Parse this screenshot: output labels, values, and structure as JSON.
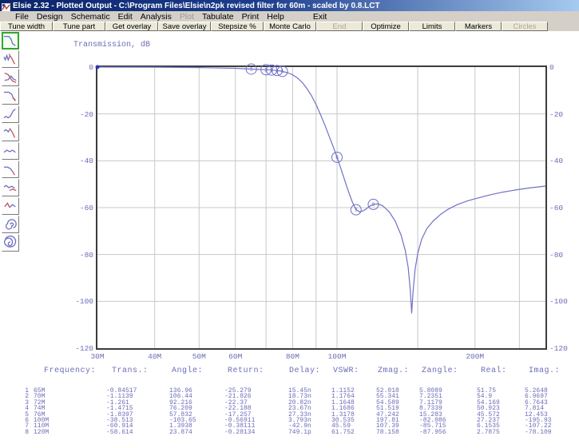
{
  "window": {
    "title": "Elsie 2.32 - Plotted Output - C:\\Program Files\\Elsie\\n2pk revised filter for 60m - scaled by 0.8.LCT"
  },
  "menu": {
    "items": [
      {
        "label": "File",
        "enabled": true
      },
      {
        "label": "Design",
        "enabled": true
      },
      {
        "label": "Schematic",
        "enabled": true
      },
      {
        "label": "Edit",
        "enabled": true
      },
      {
        "label": "Analysis",
        "enabled": true
      },
      {
        "label": "Plot",
        "enabled": false
      },
      {
        "label": "Tabulate",
        "enabled": true
      },
      {
        "label": "Print",
        "enabled": true
      },
      {
        "label": "Help",
        "enabled": true
      },
      {
        "label": "Exit",
        "enabled": true
      }
    ]
  },
  "toolbar": {
    "buttons": [
      {
        "label": "Tune width",
        "enabled": true
      },
      {
        "label": "Tune part",
        "enabled": true
      },
      {
        "label": "Get overlay",
        "enabled": true
      },
      {
        "label": "Save overlay",
        "enabled": true
      },
      {
        "label": "Stepsize %",
        "enabled": true
      },
      {
        "label": "Monte Carlo",
        "enabled": true
      },
      {
        "label": "End",
        "enabled": false
      },
      {
        "label": "Optimize",
        "enabled": true
      },
      {
        "label": "Limits",
        "enabled": true
      },
      {
        "label": "Markers",
        "enabled": true
      },
      {
        "label": "Circles",
        "enabled": false
      }
    ]
  },
  "side_toolbar": {
    "selected_index": 0,
    "buttons": [
      {
        "icon": "transmission-plot-icon"
      },
      {
        "icon": "transmission-phase-icon"
      },
      {
        "icon": "return-loss-icon"
      },
      {
        "icon": "reflection-plot-icon"
      },
      {
        "icon": "group-delay-icon"
      },
      {
        "icon": "reflection-phase-icon"
      },
      {
        "icon": "vswr-plot-icon"
      },
      {
        "icon": "impedance-magnitude-icon"
      },
      {
        "icon": "impedance-angle-icon"
      },
      {
        "icon": "real-imag-icon"
      },
      {
        "icon": "smith-chart-icon"
      },
      {
        "icon": "polar-chart-icon"
      }
    ]
  },
  "chart_data": {
    "type": "line",
    "title": "Transmission, dB",
    "x_axis": {
      "scale": "log",
      "min_mhz": 30,
      "max_mhz": 285,
      "tick_labels": [
        {
          "label": "30M",
          "mhz": 30
        },
        {
          "label": "40M",
          "mhz": 40
        },
        {
          "label": "50M",
          "mhz": 50
        },
        {
          "label": "60M",
          "mhz": 60
        },
        {
          "label": "80M",
          "mhz": 80
        },
        {
          "label": "100M",
          "mhz": 100
        },
        {
          "label": "200M",
          "mhz": 200
        }
      ],
      "gridlines_mhz": [
        40,
        50,
        60,
        70,
        80,
        90,
        100,
        150,
        200,
        250
      ]
    },
    "y_axis": {
      "min": -120,
      "max": 0,
      "tick_labels": [
        "0",
        "-20",
        "-40",
        "-60",
        "-80",
        "-100",
        "-120"
      ],
      "tick_values": [
        0,
        -20,
        -40,
        -60,
        -80,
        -100,
        -120
      ],
      "labels_both_sides": true
    },
    "series": [
      {
        "name": "Transmission, dB",
        "points_mhz_db": [
          [
            30,
            0
          ],
          [
            40,
            -0.05
          ],
          [
            50,
            -0.2
          ],
          [
            60,
            -0.5
          ],
          [
            65,
            -0.85
          ],
          [
            70,
            -1.11
          ],
          [
            72,
            -1.26
          ],
          [
            74,
            -1.47
          ],
          [
            76,
            -1.84
          ],
          [
            78,
            -2.4
          ],
          [
            80,
            -3.3
          ],
          [
            82,
            -4.7
          ],
          [
            84,
            -6.6
          ],
          [
            86,
            -9.2
          ],
          [
            88,
            -12.3
          ],
          [
            90,
            -16
          ],
          [
            92,
            -20.2
          ],
          [
            94,
            -24.6
          ],
          [
            96,
            -29.2
          ],
          [
            98,
            -33.8
          ],
          [
            100,
            -38.5
          ],
          [
            102,
            -43.5
          ],
          [
            104,
            -48.5
          ],
          [
            106,
            -53.3
          ],
          [
            108,
            -57.6
          ],
          [
            110,
            -60.9
          ],
          [
            112,
            -61.8
          ],
          [
            114,
            -61.4
          ],
          [
            116,
            -60.4
          ],
          [
            118,
            -59.3
          ],
          [
            120,
            -58.6
          ],
          [
            123,
            -58.4
          ],
          [
            126,
            -59.3
          ],
          [
            130,
            -61.8
          ],
          [
            134,
            -65.8
          ],
          [
            138,
            -71.8
          ],
          [
            141,
            -78.5
          ],
          [
            143,
            -85.5
          ],
          [
            144.5,
            -95
          ],
          [
            145.5,
            -105
          ],
          [
            146.5,
            -96
          ],
          [
            148,
            -86.5
          ],
          [
            150,
            -79.5
          ],
          [
            153,
            -73.5
          ],
          [
            157,
            -69
          ],
          [
            162,
            -65.8
          ],
          [
            168,
            -63
          ],
          [
            175,
            -60.6
          ],
          [
            183,
            -58.7
          ],
          [
            192,
            -57.2
          ],
          [
            200,
            -56.2
          ],
          [
            215,
            -54.6
          ],
          [
            230,
            -53.4
          ],
          [
            250,
            -52.2
          ],
          [
            265,
            -51.5
          ],
          [
            285,
            -50.8
          ]
        ]
      }
    ],
    "markers": [
      {
        "n": "1",
        "mhz": 65,
        "db": -0.84517
      },
      {
        "n": "2",
        "mhz": 70,
        "db": -1.1139
      },
      {
        "n": "3",
        "mhz": 72,
        "db": -1.261
      },
      {
        "n": "4",
        "mhz": 74,
        "db": -1.4715
      },
      {
        "n": "5",
        "mhz": 76,
        "db": -1.8397
      },
      {
        "n": "6",
        "mhz": 100,
        "db": -38.513
      },
      {
        "n": "7",
        "mhz": 110,
        "db": -60.914
      },
      {
        "n": "8",
        "mhz": 120,
        "db": -58.614
      }
    ],
    "start_dot": {
      "mhz": 30,
      "db": 0
    },
    "colors": {
      "curve": "#7070c8",
      "grid": "#c8c8c8",
      "frame": "#3c3c3c",
      "text": "#6c6cb8"
    }
  },
  "table": {
    "headers": [
      "Frequency:",
      "Trans.:",
      "Angle:",
      "Return:",
      "Delay:",
      "VSWR:",
      "Zmag.:",
      "Zangle:",
      "Real:",
      "Imag.:"
    ],
    "rows": [
      [
        "1",
        "65M",
        "-0.84517",
        "136.96",
        "-25.279",
        "15.45n",
        "1.1152",
        "52.018",
        "5.8089",
        "51.75",
        "5.2648"
      ],
      [
        "2",
        "70M",
        "-1.1139",
        "106.44",
        "-21.826",
        "18.73n",
        "1.1764",
        "55.341",
        "7.2351",
        "54.9",
        "6.9697"
      ],
      [
        "3",
        "72M",
        "-1.261",
        "92.216",
        "-22.37",
        "20.82n",
        "1.1648",
        "54.589",
        "7.1179",
        "54.169",
        "6.7643"
      ],
      [
        "4",
        "74M",
        "-1.4715",
        "76.209",
        "-22.188",
        "23.67n",
        "1.1686",
        "51.519",
        "8.7339",
        "50.923",
        "7.814"
      ],
      [
        "5",
        "76M",
        "-1.8397",
        "57.832",
        "-17.257",
        "27.33n",
        "1.3178",
        "47.242",
        "15.283",
        "45.572",
        "12.453"
      ],
      [
        "6",
        "100M",
        "-38.513",
        "-103.65",
        "-0.56911",
        "3.793n",
        "30.535",
        "197.81",
        "-82.086",
        "27.237",
        "-195.93"
      ],
      [
        "7",
        "110M",
        "-60.914",
        "1.3938",
        "-0.38111",
        "-42.9n",
        "45.59",
        "107.39",
        "-85.715",
        "6.1535",
        "-107.22"
      ],
      [
        "8",
        "120M",
        "-58.614",
        "23.874",
        "-0.28134",
        "749.1p",
        "61.752",
        "78.158",
        "-87.956",
        "2.7875",
        "-78.109"
      ]
    ]
  }
}
